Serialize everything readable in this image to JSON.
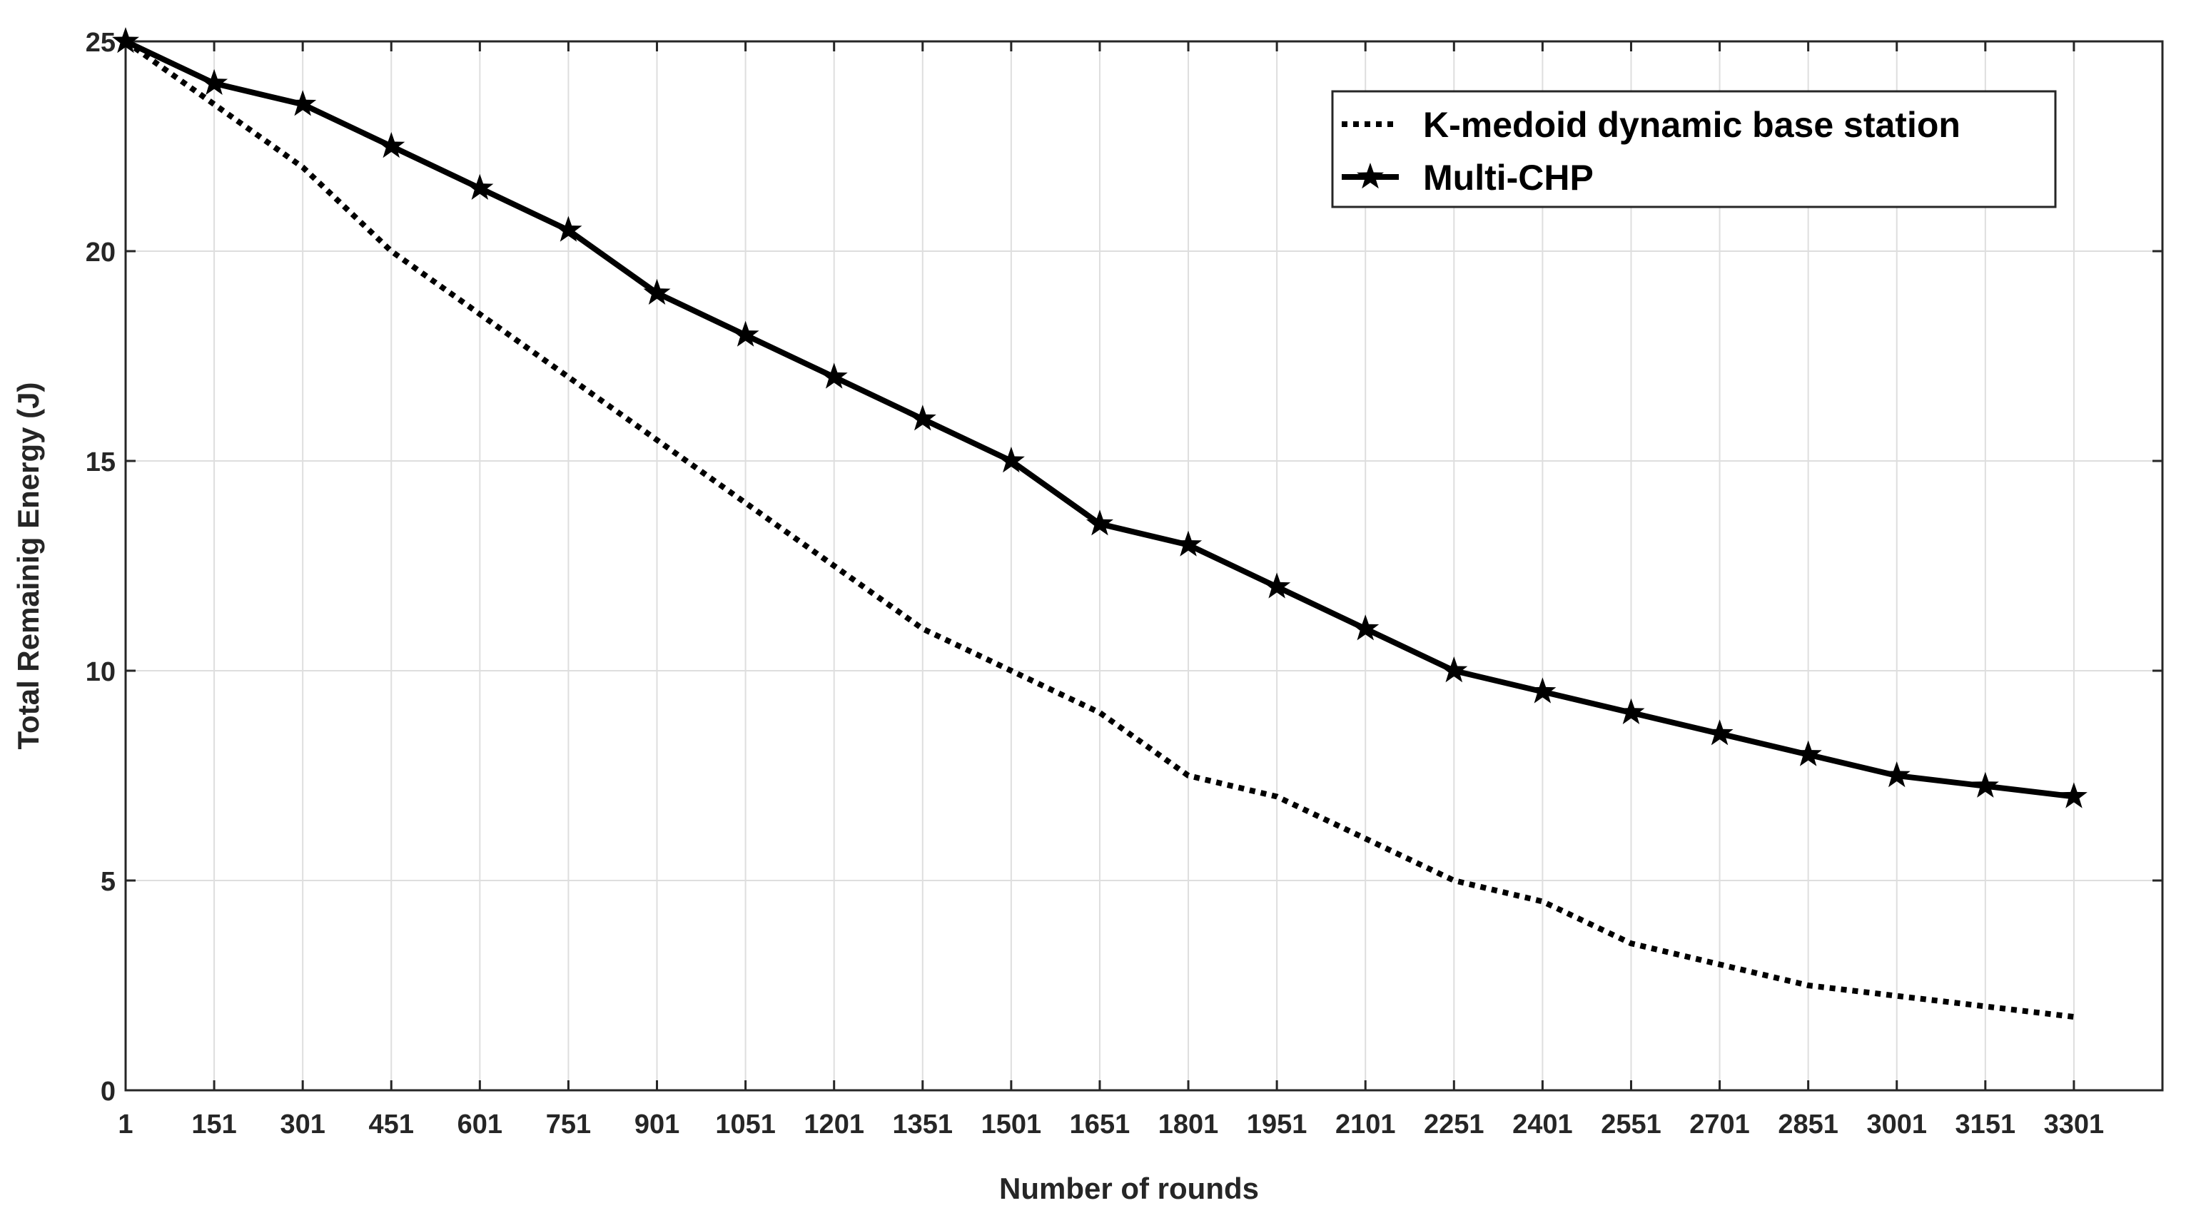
{
  "chart_data": {
    "type": "line",
    "title": "",
    "xlabel": "Number of rounds",
    "ylabel": "Total Remainig Energy (J)",
    "x": [
      1,
      151,
      301,
      451,
      601,
      751,
      901,
      1051,
      1201,
      1351,
      1501,
      1651,
      1801,
      1951,
      2101,
      2251,
      2401,
      2551,
      2701,
      2851,
      3001,
      3151,
      3301
    ],
    "xtick_labels": [
      "1",
      "151",
      "301",
      "451",
      "601",
      "751",
      "901",
      "1051",
      "1201",
      "1351",
      "1501",
      "1651",
      "1801",
      "1951",
      "2101",
      "2251",
      "2401",
      "2551",
      "2701",
      "2851",
      "3001",
      "3151",
      "3301"
    ],
    "xlim": [
      1,
      3451
    ],
    "ylim": [
      0,
      25
    ],
    "yticks": [
      0,
      5,
      10,
      15,
      20,
      25
    ],
    "grid": true,
    "legend_position": "top-right",
    "series": [
      {
        "name": "K-medoid dynamic base station",
        "style": "dotted",
        "color": "#000000",
        "values": [
          25,
          23.5,
          22,
          20,
          18.5,
          17,
          15.5,
          14,
          12.5,
          11,
          10,
          9,
          7.5,
          7,
          6,
          5,
          4.5,
          3.5,
          3,
          2.5,
          2.25,
          2,
          1.75
        ]
      },
      {
        "name": "Multi-CHP",
        "style": "solid-star",
        "color": "#000000",
        "values": [
          25,
          24,
          23.5,
          22.5,
          21.5,
          20.5,
          19,
          18,
          17,
          16,
          15,
          13.5,
          13,
          12,
          11,
          10,
          9.5,
          9,
          8.5,
          8,
          7.5,
          7.25,
          7
        ]
      }
    ]
  }
}
